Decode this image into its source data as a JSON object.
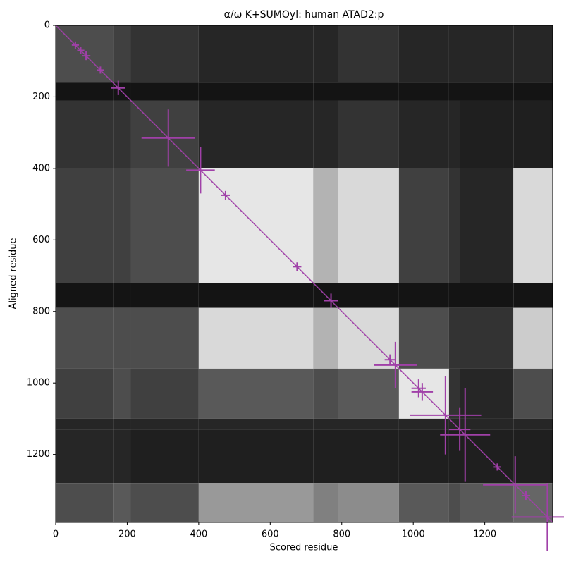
{
  "chart_data": {
    "type": "heatmap",
    "title": "α/ω K+SUMOyl: human ATAD2:p",
    "x_label": "Scored residue",
    "y_label": "Aligned residue",
    "xlim": [
      0,
      1390
    ],
    "ylim": [
      1390,
      0
    ],
    "xticks": [
      0,
      200,
      400,
      600,
      800,
      1000,
      1200
    ],
    "yticks": [
      0,
      200,
      400,
      600,
      800,
      1000,
      1200
    ],
    "heatmap": {
      "bounds": [
        0,
        160,
        210,
        400,
        720,
        790,
        960,
        1100,
        1130,
        1280,
        1390
      ],
      "values": [
        [
          0.3,
          0.25,
          0.2,
          0.15,
          0.15,
          0.2,
          0.15,
          0.15,
          0.15,
          0.15
        ],
        [
          0.08,
          0.08,
          0.08,
          0.08,
          0.08,
          0.08,
          0.08,
          0.08,
          0.08,
          0.08
        ],
        [
          0.2,
          0.2,
          0.25,
          0.15,
          0.15,
          0.2,
          0.15,
          0.15,
          0.12,
          0.12
        ],
        [
          0.25,
          0.25,
          0.3,
          0.9,
          0.7,
          0.85,
          0.25,
          0.2,
          0.15,
          0.85
        ],
        [
          0.08,
          0.08,
          0.08,
          0.08,
          0.08,
          0.08,
          0.08,
          0.08,
          0.08,
          0.08
        ],
        [
          0.3,
          0.3,
          0.3,
          0.85,
          0.7,
          0.85,
          0.3,
          0.2,
          0.2,
          0.8
        ],
        [
          0.25,
          0.3,
          0.25,
          0.35,
          0.3,
          0.35,
          0.9,
          0.2,
          0.15,
          0.3
        ],
        [
          0.15,
          0.15,
          0.15,
          0.15,
          0.15,
          0.15,
          0.15,
          0.15,
          0.15,
          0.15
        ],
        [
          0.15,
          0.15,
          0.12,
          0.12,
          0.12,
          0.12,
          0.12,
          0.12,
          0.12,
          0.12
        ],
        [
          0.3,
          0.35,
          0.3,
          0.6,
          0.5,
          0.55,
          0.35,
          0.3,
          0.35,
          0.4
        ]
      ]
    },
    "points": {
      "color": "#a040a8",
      "x": [
        55,
        70,
        85,
        125,
        175,
        315,
        405,
        475,
        675,
        770,
        935,
        950,
        1015,
        1025,
        1090,
        1130,
        1145,
        1235,
        1285,
        1315,
        1375
      ],
      "y": [
        55,
        70,
        85,
        125,
        175,
        315,
        405,
        475,
        675,
        770,
        935,
        950,
        1015,
        1025,
        1090,
        1130,
        1145,
        1235,
        1285,
        1315,
        1375
      ],
      "xerr": [
        10,
        10,
        12,
        10,
        20,
        75,
        40,
        12,
        12,
        20,
        15,
        60,
        20,
        30,
        100,
        30,
        70,
        10,
        90,
        12,
        100
      ],
      "yerr": [
        10,
        10,
        12,
        10,
        20,
        80,
        65,
        12,
        12,
        20,
        15,
        65,
        25,
        25,
        110,
        60,
        130,
        10,
        80,
        12,
        95
      ]
    }
  }
}
